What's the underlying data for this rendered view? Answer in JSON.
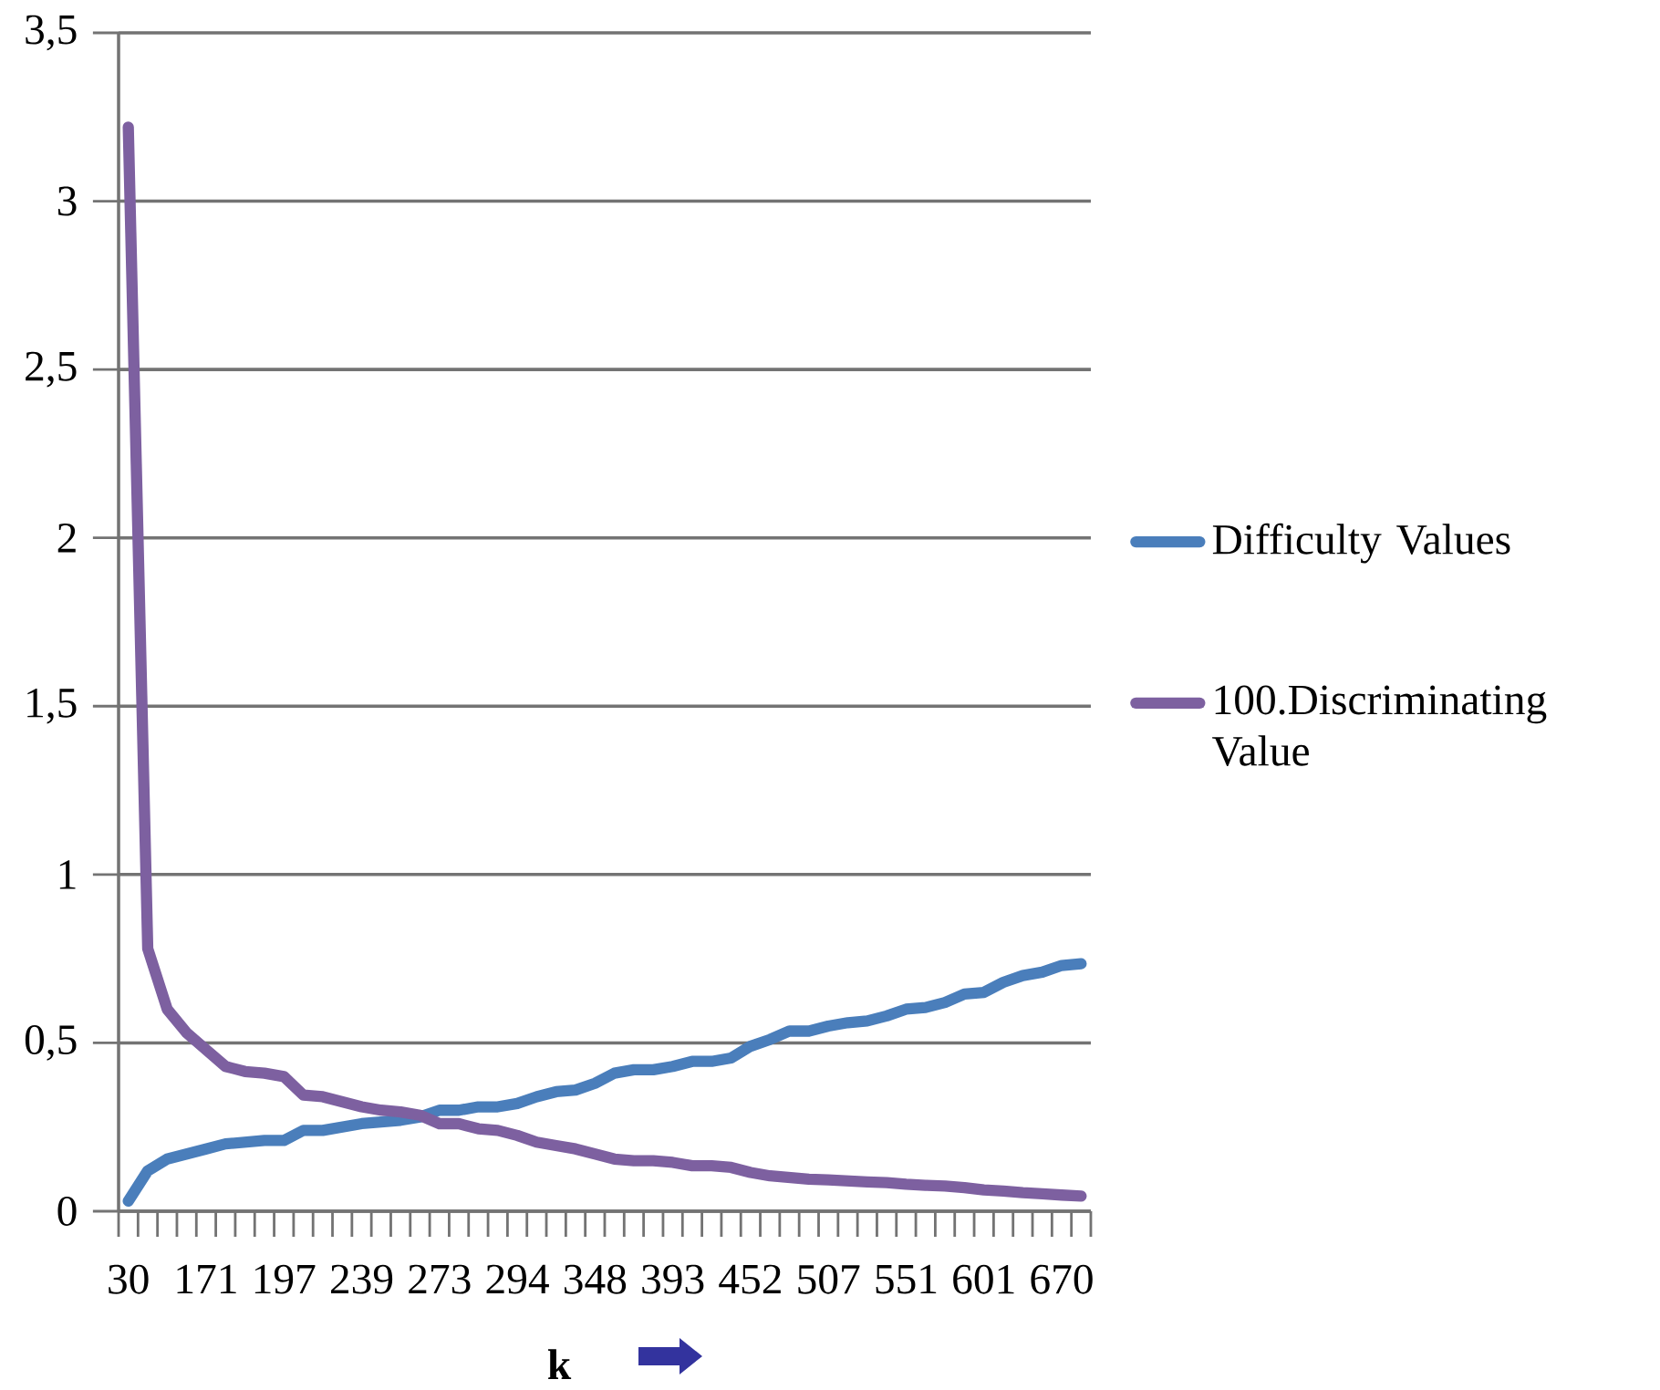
{
  "chart_data": {
    "type": "line",
    "xlabel": "k",
    "categories": [
      "30",
      null,
      null,
      null,
      "171",
      null,
      null,
      null,
      "197",
      null,
      null,
      null,
      "239",
      null,
      null,
      null,
      "273",
      null,
      null,
      null,
      "294",
      null,
      null,
      null,
      "348",
      null,
      null,
      null,
      "393",
      null,
      null,
      null,
      "452",
      null,
      null,
      null,
      "507",
      null,
      null,
      null,
      "551",
      null,
      null,
      null,
      "601",
      null,
      null,
      null,
      "670",
      null
    ],
    "series": [
      {
        "name": "Difficulty Values",
        "color": "#4a7ebb",
        "values": [
          0.03,
          0.12,
          0.155,
          0.17,
          0.185,
          0.2,
          0.205,
          0.21,
          0.21,
          0.24,
          0.24,
          0.25,
          0.26,
          0.265,
          0.27,
          0.28,
          0.3,
          0.3,
          0.31,
          0.31,
          0.32,
          0.34,
          0.355,
          0.36,
          0.38,
          0.41,
          0.42,
          0.42,
          0.43,
          0.445,
          0.445,
          0.455,
          0.49,
          0.51,
          0.535,
          0.535,
          0.55,
          0.56,
          0.565,
          0.58,
          0.6,
          0.605,
          0.62,
          0.645,
          0.65,
          0.68,
          0.7,
          0.71,
          0.73,
          0.735
        ]
      },
      {
        "name": "100.Discriminating Value",
        "color": "#7d60a0",
        "values": [
          3.22,
          0.78,
          0.6,
          0.53,
          0.48,
          0.43,
          0.415,
          0.41,
          0.4,
          0.345,
          0.34,
          0.325,
          0.31,
          0.3,
          0.295,
          0.285,
          0.26,
          0.26,
          0.245,
          0.24,
          0.225,
          0.205,
          0.195,
          0.185,
          0.17,
          0.155,
          0.15,
          0.15,
          0.145,
          0.135,
          0.135,
          0.13,
          0.115,
          0.105,
          0.1,
          0.095,
          0.093,
          0.09,
          0.087,
          0.085,
          0.08,
          0.077,
          0.075,
          0.07,
          0.063,
          0.06,
          0.055,
          0.052,
          0.048,
          0.045
        ]
      }
    ],
    "ylim": [
      0,
      3.5
    ],
    "yticks": [
      0,
      {
        "value": 0.5,
        "label": "0,5"
      },
      1,
      {
        "value": 1.5,
        "label": "1,5"
      },
      2,
      {
        "value": 2.5,
        "label": "2,5"
      },
      3,
      {
        "value": 3.5,
        "label": "3,5"
      }
    ],
    "grid": "y",
    "legend": "right",
    "marker": "none",
    "line_style": "solid"
  }
}
